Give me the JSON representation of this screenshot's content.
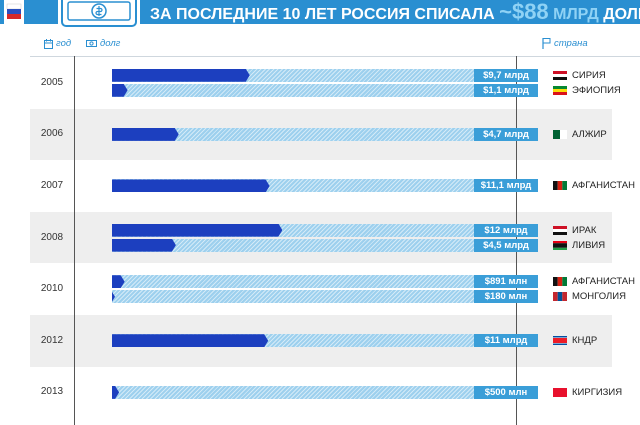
{
  "header": {
    "title_text": "ЗА ПОСЛЕДНИЕ 10 ЛЕТ РОССИЯ СПИСАЛА",
    "amount": "~$88",
    "unit": "МЛРД",
    "suffix": "ДОЛГОВ"
  },
  "legend": {
    "year": "год",
    "debt": "долг",
    "country": "страна"
  },
  "colors": {
    "band": "#2a8fd1",
    "bar": "#1c3fbf",
    "track": "#9dd0ee",
    "label": "#3a9ed8",
    "shade": "#eeeeee"
  },
  "chart_data": {
    "type": "bar",
    "unit": "USD",
    "xlim": [
      0,
      30000000000
    ],
    "groups": [
      {
        "year": "2005",
        "items": [
          {
            "country": "СИРИЯ",
            "label": "$9,7 млрд",
            "value": 9700000000
          },
          {
            "country": "ЭФИОПИЯ",
            "label": "$1,1 млрд",
            "value": 1100000000
          }
        ]
      },
      {
        "year": "2006",
        "items": [
          {
            "country": "АЛЖИР",
            "label": "$4,7 млрд",
            "value": 4700000000
          }
        ]
      },
      {
        "year": "2007",
        "items": [
          {
            "country": "АФГАНИСТАН",
            "label": "$11,1 млрд",
            "value": 11100000000
          }
        ]
      },
      {
        "year": "2008",
        "items": [
          {
            "country": "ИРАК",
            "label": "$12 млрд",
            "value": 12000000000
          },
          {
            "country": "ЛИВИЯ",
            "label": "$4,5 млрд",
            "value": 4500000000
          }
        ]
      },
      {
        "year": "2010",
        "items": [
          {
            "country": "АФГАНИСТАН",
            "label": "$891 млн",
            "value": 891000000
          },
          {
            "country": "МОНГОЛИЯ",
            "label": "$180 млн",
            "value": 180000000
          }
        ]
      },
      {
        "year": "2012",
        "items": [
          {
            "country": "КНДР",
            "label": "$11 млрд",
            "value": 11000000000
          }
        ]
      },
      {
        "year": "2013",
        "items": [
          {
            "country": "КИРГИЗИЯ",
            "label": "$500 млн",
            "value": 500000000
          }
        ]
      }
    ]
  }
}
